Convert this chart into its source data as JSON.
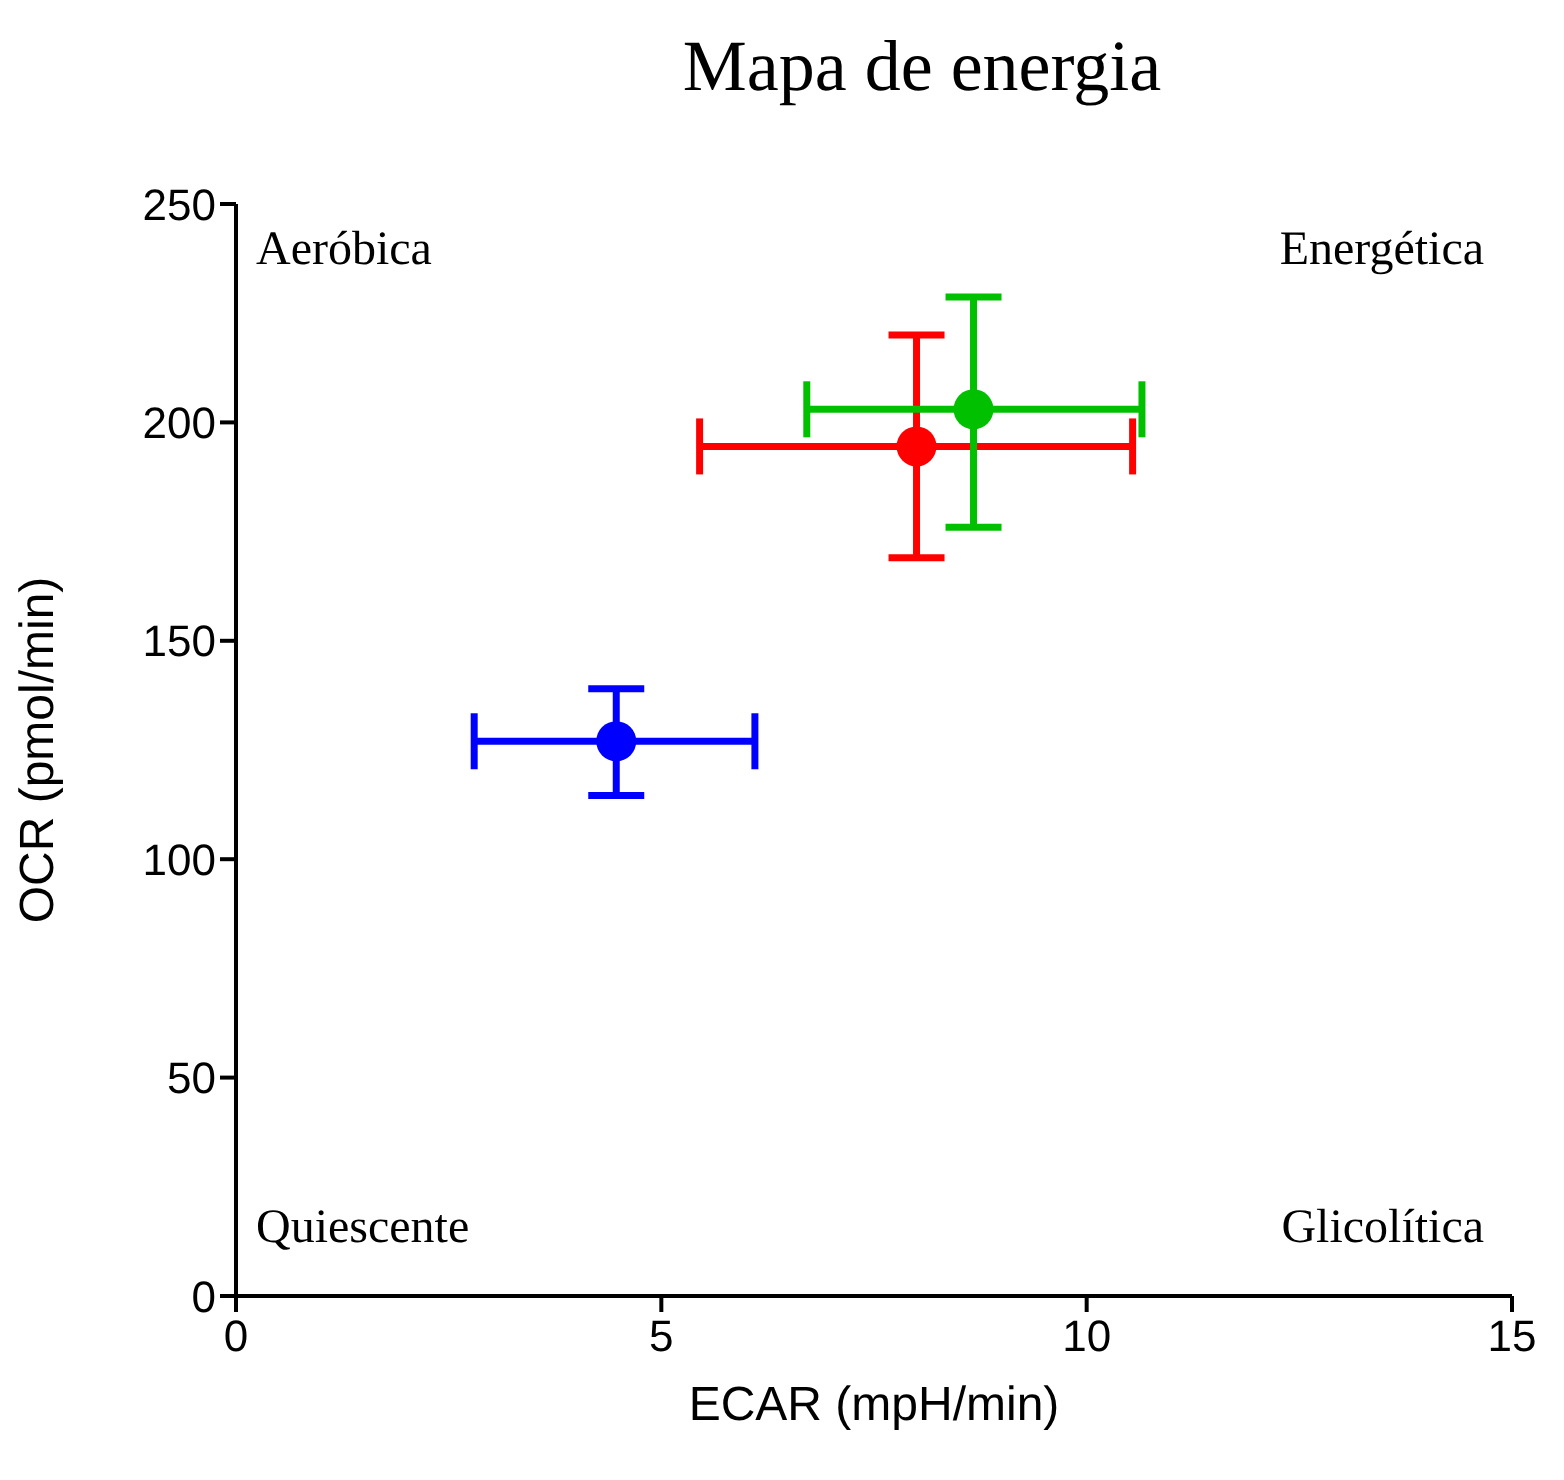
{
  "chart_data": {
    "type": "scatter",
    "title": "Mapa de energia",
    "xlabel": "ECAR (mpH/min)",
    "ylabel": "OCR (pmol/min)",
    "xlim": [
      0,
      15
    ],
    "xticks": [
      0,
      5,
      10,
      15
    ],
    "ylim": [
      0,
      250
    ],
    "yticks": [
      0,
      50,
      100,
      150,
      200,
      250
    ],
    "grid": false,
    "legend": false,
    "marker": "circle",
    "annotations": [
      "Aeróbica",
      "Energética",
      "Quiescente",
      "Glicolítica"
    ],
    "series": [
      {
        "color": "#0000ff",
        "x": [
          4.47
        ],
        "values": [
          127
        ],
        "errors": [
          [
            114.6,
            139
          ]
        ],
        "xerrors": [
          [
            2.8,
            6.1
          ]
        ]
      },
      {
        "color": "#ff0000",
        "x": [
          8.0
        ],
        "values": [
          194.5
        ],
        "errors": [
          [
            169,
            220
          ]
        ],
        "xerrors": [
          [
            5.45,
            10.54
          ]
        ]
      },
      {
        "color": "#00c000",
        "x": [
          8.67
        ],
        "values": [
          203
        ],
        "errors": [
          [
            176,
            228.7
          ]
        ],
        "xerrors": [
          [
            6.71,
            10.65
          ]
        ]
      }
    ]
  }
}
